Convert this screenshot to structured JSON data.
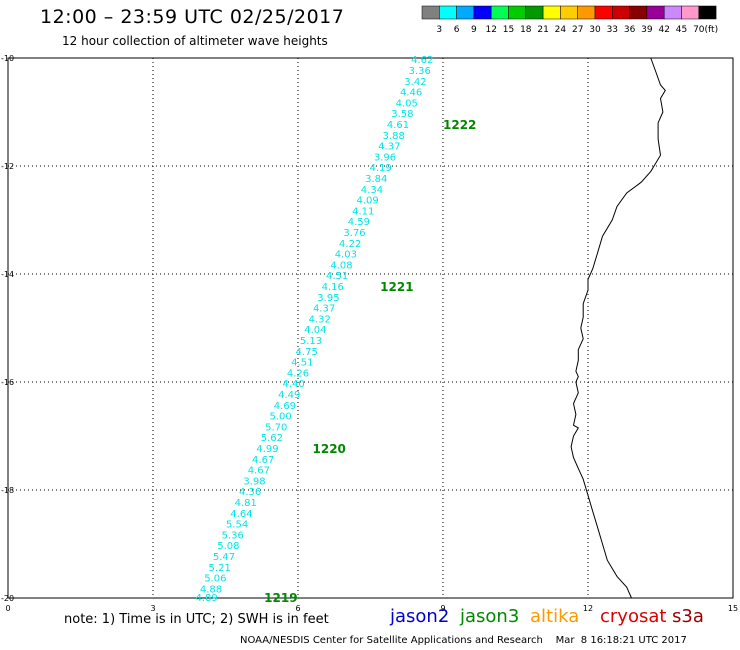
{
  "header": {
    "title": "12:00 – 23:59 UTC 02/25/2017",
    "subtitle": "12 hour collection of altimeter wave heights"
  },
  "colorbar": {
    "labels": [
      "3",
      "6",
      "9",
      "12",
      "15",
      "18",
      "21",
      "24",
      "27",
      "30",
      "33",
      "36",
      "39",
      "42",
      "45",
      "70"
    ],
    "unit": "(ft)",
    "colors": [
      "#808080",
      "#00ffff",
      "#00aaff",
      "#0000ff",
      "#00ff55",
      "#00cc00",
      "#009900",
      "#ffff00",
      "#ffcc00",
      "#ff9900",
      "#ff0000",
      "#cc0000",
      "#880000",
      "#990099",
      "#cc88ff",
      "#ff99cc",
      "#000000"
    ]
  },
  "footer": {
    "note": "note: 1) Time is in UTC; 2) SWH is in feet",
    "credit": "NOAA/NESDIS Center for Satellite Applications and Research    Mar  8 16:18:21 UTC 2017",
    "satellites": [
      {
        "name": "jason2",
        "color": "#0000cc"
      },
      {
        "name": "jason3",
        "color": "#008800"
      },
      {
        "name": "altika",
        "color": "#ff9900"
      },
      {
        "name": "cryosat",
        "color": "#dd0000"
      },
      {
        "name": "s3a",
        "color": "#990000"
      }
    ]
  },
  "chart_data": {
    "type": "scatter",
    "title": "12:00 – 23:59 UTC 02/25/2017",
    "subtitle": "12 hour collection of altimeter wave heights",
    "xlim": [
      0,
      15
    ],
    "ylim": [
      -20,
      -10
    ],
    "xticks": [
      "0",
      "3",
      "6",
      "9",
      "12",
      "15"
    ],
    "yticks": [
      "-10",
      "-12",
      "-14",
      "-16",
      "-18",
      "-20"
    ],
    "grid": true,
    "track_color": "#00e5e5",
    "time_label_color": "#008800",
    "coast_color": "#000000",
    "wave_heights": [
      {
        "x": 8.8,
        "y": -10.04,
        "swh": "4.62"
      },
      {
        "x": 8.75,
        "y": -10.24,
        "swh": "3.36"
      },
      {
        "x": 8.66,
        "y": -10.44,
        "swh": "3.42"
      },
      {
        "x": 8.57,
        "y": -10.64,
        "swh": "4.46"
      },
      {
        "x": 8.48,
        "y": -10.84,
        "swh": "4.05"
      },
      {
        "x": 8.39,
        "y": -11.04,
        "swh": "3.58"
      },
      {
        "x": 8.3,
        "y": -11.24,
        "swh": "4.61"
      },
      {
        "x": 8.21,
        "y": -11.44,
        "swh": "3.88"
      },
      {
        "x": 8.12,
        "y": -11.64,
        "swh": "4.37"
      },
      {
        "x": 8.03,
        "y": -11.84,
        "swh": "3.96"
      },
      {
        "x": 7.94,
        "y": -12.04,
        "swh": "4.19"
      },
      {
        "x": 7.85,
        "y": -12.24,
        "swh": "3.84"
      },
      {
        "x": 7.76,
        "y": -12.44,
        "swh": "4.34"
      },
      {
        "x": 7.67,
        "y": -12.64,
        "swh": "4.09"
      },
      {
        "x": 7.58,
        "y": -12.84,
        "swh": "4.11"
      },
      {
        "x": 7.49,
        "y": -13.04,
        "swh": "4.59"
      },
      {
        "x": 7.4,
        "y": -13.24,
        "swh": "3.76"
      },
      {
        "x": 7.31,
        "y": -13.44,
        "swh": "4.22"
      },
      {
        "x": 7.22,
        "y": -13.64,
        "swh": "4.03"
      },
      {
        "x": 7.13,
        "y": -13.84,
        "swh": "4.08"
      },
      {
        "x": 7.04,
        "y": -14.04,
        "swh": "4.51"
      },
      {
        "x": 6.95,
        "y": -14.24,
        "swh": "4.16"
      },
      {
        "x": 6.86,
        "y": -14.44,
        "swh": "3.95"
      },
      {
        "x": 6.77,
        "y": -14.64,
        "swh": "4.37"
      },
      {
        "x": 6.68,
        "y": -14.84,
        "swh": "4.32"
      },
      {
        "x": 6.59,
        "y": -15.04,
        "swh": "4.04"
      },
      {
        "x": 6.5,
        "y": -15.24,
        "swh": "5.13"
      },
      {
        "x": 6.41,
        "y": -15.44,
        "swh": "4.75"
      },
      {
        "x": 6.32,
        "y": -15.64,
        "swh": "4.51"
      },
      {
        "x": 6.23,
        "y": -15.84,
        "swh": "4.26"
      },
      {
        "x": 6.14,
        "y": -16.04,
        "swh": "4.40"
      },
      {
        "x": 6.05,
        "y": -16.24,
        "swh": "4.49"
      },
      {
        "x": 5.96,
        "y": -16.44,
        "swh": "4.69"
      },
      {
        "x": 5.87,
        "y": -16.64,
        "swh": "5.00"
      },
      {
        "x": 5.78,
        "y": -16.84,
        "swh": "5.70"
      },
      {
        "x": 5.69,
        "y": -17.04,
        "swh": "5.62"
      },
      {
        "x": 5.6,
        "y": -17.24,
        "swh": "4.99"
      },
      {
        "x": 5.51,
        "y": -17.44,
        "swh": "4.67"
      },
      {
        "x": 5.42,
        "y": -17.64,
        "swh": "4.67"
      },
      {
        "x": 5.33,
        "y": -17.84,
        "swh": "3.98"
      },
      {
        "x": 5.24,
        "y": -18.04,
        "swh": "4.36"
      },
      {
        "x": 5.15,
        "y": -18.24,
        "swh": "4.81"
      },
      {
        "x": 5.06,
        "y": -18.44,
        "swh": "4.64"
      },
      {
        "x": 4.97,
        "y": -18.64,
        "swh": "5.54"
      },
      {
        "x": 4.88,
        "y": -18.84,
        "swh": "5.36"
      },
      {
        "x": 4.79,
        "y": -19.04,
        "swh": "5.08"
      },
      {
        "x": 4.7,
        "y": -19.24,
        "swh": "5.47"
      },
      {
        "x": 4.61,
        "y": -19.44,
        "swh": "5.21"
      },
      {
        "x": 4.52,
        "y": -19.64,
        "swh": "5.06"
      },
      {
        "x": 4.43,
        "y": -19.84,
        "swh": "4.88"
      },
      {
        "x": 4.34,
        "y": -20.0,
        "swh": "4.89"
      }
    ],
    "time_labels": [
      {
        "x": 9.0,
        "y": -11.24,
        "text": "1222"
      },
      {
        "x": 7.7,
        "y": -14.24,
        "text": "1221"
      },
      {
        "x": 6.3,
        "y": -17.24,
        "text": "1220"
      },
      {
        "x": 5.3,
        "y": -20.0,
        "text": "1219"
      }
    ],
    "coastline": [
      [
        13.3,
        -10.0
      ],
      [
        13.4,
        -10.25
      ],
      [
        13.5,
        -10.5
      ],
      [
        13.6,
        -10.6
      ],
      [
        13.5,
        -10.75
      ],
      [
        13.55,
        -11.0
      ],
      [
        13.45,
        -11.2
      ],
      [
        13.45,
        -11.5
      ],
      [
        13.5,
        -11.8
      ],
      [
        13.3,
        -12.1
      ],
      [
        13.1,
        -12.3
      ],
      [
        12.8,
        -12.5
      ],
      [
        12.6,
        -12.75
      ],
      [
        12.5,
        -13.0
      ],
      [
        12.3,
        -13.3
      ],
      [
        12.2,
        -13.6
      ],
      [
        12.1,
        -13.9
      ],
      [
        12.0,
        -14.1
      ],
      [
        12.0,
        -14.3
      ],
      [
        11.9,
        -14.55
      ],
      [
        11.9,
        -14.8
      ],
      [
        11.85,
        -15.0
      ],
      [
        11.9,
        -15.2
      ],
      [
        11.8,
        -15.4
      ],
      [
        11.8,
        -15.6
      ],
      [
        11.75,
        -15.8
      ],
      [
        11.8,
        -15.9
      ],
      [
        11.75,
        -16.0
      ],
      [
        11.8,
        -16.2
      ],
      [
        11.7,
        -16.4
      ],
      [
        11.75,
        -16.6
      ],
      [
        11.7,
        -16.8
      ],
      [
        11.8,
        -16.85
      ],
      [
        11.7,
        -17.0
      ],
      [
        11.65,
        -17.2
      ],
      [
        11.7,
        -17.4
      ],
      [
        11.8,
        -17.6
      ],
      [
        11.9,
        -17.8
      ],
      [
        12.0,
        -18.1
      ],
      [
        12.1,
        -18.4
      ],
      [
        12.2,
        -18.7
      ],
      [
        12.3,
        -19.0
      ],
      [
        12.4,
        -19.3
      ],
      [
        12.6,
        -19.6
      ],
      [
        12.8,
        -19.8
      ],
      [
        12.9,
        -20.0
      ]
    ]
  }
}
